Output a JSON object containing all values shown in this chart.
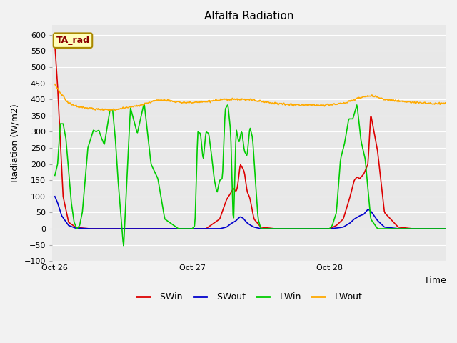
{
  "title": "Alfalfa Radiation",
  "xlabel": "Time",
  "ylabel": "Radiation (W/m2)",
  "ylim": [
    -100,
    630
  ],
  "yticks": [
    -100,
    -50,
    0,
    50,
    100,
    150,
    200,
    250,
    300,
    350,
    400,
    450,
    500,
    550,
    600
  ],
  "xtick_labels": [
    "Oct 26",
    "Oct 27",
    "Oct 28"
  ],
  "bg_color": "#e8e8e8",
  "fig_color": "#f2f2f2",
  "label_box_text": "TA_rad",
  "label_box_color": "#ffffbb",
  "label_box_border": "#aa8800",
  "legend_entries": [
    "SWin",
    "SWout",
    "LWin",
    "LWout"
  ],
  "line_colors": [
    "#dd0000",
    "#0000cc",
    "#00cc00",
    "#ffaa00"
  ],
  "title_fontsize": 11,
  "axis_label_fontsize": 9,
  "tick_fontsize": 8,
  "SWin_t": [
    0,
    0.02,
    0.06,
    0.1,
    0.15,
    0.2,
    0.25,
    0.3,
    0.4,
    0.5,
    0.6,
    0.7,
    0.8,
    0.9,
    1.0,
    1.1,
    1.2,
    1.25,
    1.28,
    1.3,
    1.32,
    1.33,
    1.35,
    1.37,
    1.38,
    1.4,
    1.42,
    1.45,
    1.5,
    1.6,
    1.7,
    1.8,
    1.9,
    2.0,
    2.05,
    2.1,
    2.15,
    2.18,
    2.2,
    2.22,
    2.25,
    2.28,
    2.3,
    2.35,
    2.4,
    2.5,
    2.6,
    2.7,
    2.85,
    3.0
  ],
  "SWin_v": [
    570,
    440,
    100,
    20,
    5,
    2,
    0,
    0,
    0,
    0,
    0,
    0,
    0,
    0,
    0,
    0,
    30,
    90,
    110,
    125,
    115,
    130,
    200,
    185,
    175,
    115,
    95,
    30,
    5,
    0,
    0,
    0,
    0,
    0,
    10,
    30,
    100,
    150,
    160,
    155,
    170,
    200,
    355,
    240,
    50,
    5,
    0,
    0,
    0,
    0
  ],
  "SWout_t": [
    0,
    0.02,
    0.05,
    0.1,
    0.15,
    0.25,
    0.4,
    0.8,
    1.0,
    1.2,
    1.25,
    1.28,
    1.3,
    1.32,
    1.33,
    1.35,
    1.37,
    1.38,
    1.4,
    1.42,
    1.45,
    1.5,
    1.6,
    2.0,
    2.05,
    2.1,
    2.15,
    2.18,
    2.2,
    2.22,
    2.25,
    2.28,
    2.3,
    2.35,
    2.4,
    2.5,
    2.7,
    3.0
  ],
  "SWout_v": [
    100,
    80,
    40,
    10,
    2,
    0,
    0,
    0,
    0,
    0,
    5,
    15,
    20,
    25,
    30,
    37,
    33,
    28,
    18,
    12,
    5,
    0,
    0,
    0,
    2,
    5,
    18,
    30,
    35,
    40,
    45,
    60,
    55,
    25,
    5,
    0,
    0,
    0
  ],
  "LWin_t": [
    0,
    0.02,
    0.04,
    0.06,
    0.08,
    0.1,
    0.12,
    0.14,
    0.16,
    0.18,
    0.2,
    0.22,
    0.24,
    0.28,
    0.3,
    0.32,
    0.34,
    0.36,
    0.4,
    0.42,
    0.44,
    0.46,
    0.5,
    0.55,
    0.6,
    0.65,
    0.7,
    0.75,
    0.8,
    0.9,
    1.0,
    1.02,
    1.04,
    1.06,
    1.08,
    1.1,
    1.12,
    1.14,
    1.16,
    1.18,
    1.2,
    1.22,
    1.24,
    1.26,
    1.28,
    1.3,
    1.32,
    1.34,
    1.36,
    1.38,
    1.4,
    1.42,
    1.44,
    1.46,
    1.48,
    1.5,
    1.6,
    1.7,
    1.8,
    1.9,
    2.0,
    2.02,
    2.05,
    2.08,
    2.11,
    2.14,
    2.17,
    2.2,
    2.23,
    2.26,
    2.3,
    2.35,
    2.4,
    2.5,
    2.6,
    2.7,
    3.0
  ],
  "LWin_v": [
    165,
    200,
    325,
    325,
    280,
    180,
    80,
    20,
    0,
    10,
    50,
    150,
    250,
    305,
    300,
    305,
    280,
    260,
    365,
    370,
    280,
    150,
    -60,
    375,
    295,
    390,
    200,
    155,
    30,
    0,
    0,
    10,
    300,
    295,
    210,
    300,
    295,
    230,
    155,
    110,
    150,
    155,
    370,
    385,
    300,
    0,
    310,
    265,
    305,
    240,
    225,
    315,
    280,
    150,
    30,
    0,
    0,
    0,
    0,
    0,
    0,
    10,
    50,
    215,
    265,
    340,
    340,
    385,
    270,
    215,
    30,
    0,
    0,
    0,
    0,
    0,
    0
  ],
  "LWout_t": [
    0,
    0.02,
    0.04,
    0.06,
    0.08,
    0.1,
    0.12,
    0.15,
    0.18,
    0.2,
    0.25,
    0.3,
    0.35,
    0.4,
    0.45,
    0.5,
    0.55,
    0.6,
    0.65,
    0.7,
    0.75,
    0.8,
    0.9,
    1.0,
    1.1,
    1.2,
    1.3,
    1.4,
    1.5,
    1.6,
    1.7,
    1.8,
    1.9,
    2.0,
    2.1,
    2.15,
    2.2,
    2.25,
    2.3,
    2.35,
    2.4,
    2.5,
    2.6,
    2.7,
    3.0
  ],
  "LWout_v": [
    445,
    435,
    420,
    410,
    398,
    390,
    385,
    380,
    378,
    377,
    373,
    370,
    368,
    368,
    370,
    373,
    377,
    380,
    385,
    393,
    398,
    398,
    392,
    390,
    393,
    398,
    400,
    400,
    395,
    388,
    385,
    383,
    383,
    383,
    388,
    395,
    402,
    408,
    412,
    408,
    400,
    395,
    392,
    388,
    388
  ]
}
